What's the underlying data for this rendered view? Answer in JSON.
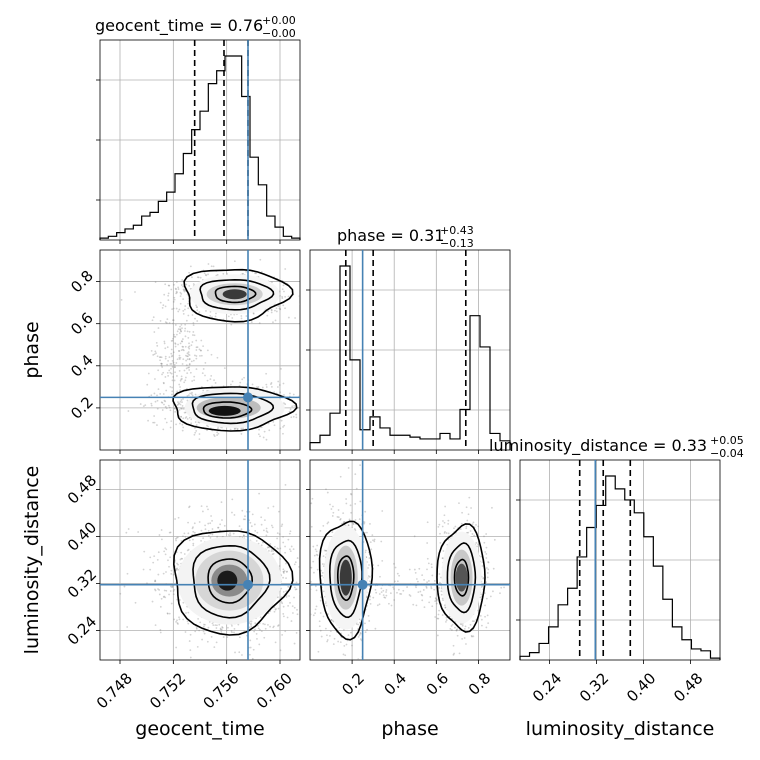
{
  "colors": {
    "truth": "#4682b4",
    "hist": "#000000",
    "grid": "#b0b0b0",
    "scatter": "#808080"
  },
  "chart_data": {
    "type": "corner",
    "parameters": [
      {
        "name": "geocent_time",
        "axis_label": "geocent_time",
        "range": [
          0.7465,
          0.7615
        ],
        "ticks": [
          0.748,
          0.752,
          0.756,
          0.76
        ],
        "tick_labels": [
          "0.748",
          "0.752",
          "0.756",
          "0.760"
        ],
        "title_main": "geocent_time = 0.76",
        "title_plus": "+0.00",
        "title_minus": "−0.00",
        "quantiles": [
          0.7536,
          0.7558,
          0.7576
        ],
        "truth": 0.7576,
        "hist": [
          0.01,
          0.02,
          0.04,
          0.06,
          0.08,
          0.13,
          0.15,
          0.21,
          0.26,
          0.36,
          0.47,
          0.6,
          0.7,
          0.85,
          0.92,
          1.0,
          1.0,
          0.78,
          0.45,
          0.3,
          0.13,
          0.07,
          0.02,
          0.01
        ]
      },
      {
        "name": "phase",
        "axis_label": "phase",
        "range": [
          0.0,
          0.95
        ],
        "ticks": [
          0.2,
          0.4,
          0.6,
          0.8
        ],
        "tick_labels": [
          "0.2",
          "0.4",
          "0.6",
          "0.8"
        ],
        "title_main": "phase = 0.31",
        "title_plus": "+0.43",
        "title_minus": "−0.13",
        "quantiles": [
          0.17,
          0.3,
          0.74
        ],
        "truth": 0.25,
        "hist": [
          0.04,
          0.08,
          0.2,
          1.0,
          0.49,
          0.11,
          0.18,
          0.12,
          0.08,
          0.08,
          0.07,
          0.06,
          0.06,
          0.09,
          0.06,
          0.22,
          0.73,
          0.56,
          0.09,
          0.05
        ]
      },
      {
        "name": "luminosity_distance",
        "axis_label": "luminosity_distance",
        "range": [
          0.19,
          0.53
        ],
        "ticks": [
          0.24,
          0.32,
          0.4,
          0.48
        ],
        "tick_labels": [
          "0.24",
          "0.32",
          "0.40",
          "0.48"
        ],
        "title_main": "luminosity_distance = 0.33",
        "title_plus": "+0.05",
        "title_minus": "−0.04",
        "quantiles": [
          0.2915,
          0.3315,
          0.3775
        ],
        "truth": 0.318,
        "hist": [
          0.02,
          0.04,
          0.09,
          0.18,
          0.3,
          0.39,
          0.56,
          0.72,
          0.84,
          1.0,
          0.93,
          0.87,
          0.8,
          0.67,
          0.51,
          0.33,
          0.18,
          0.11,
          0.06,
          0.05,
          0.01
        ]
      }
    ],
    "pairs": [
      {
        "x": "geocent_time",
        "y": "phase",
        "truth": [
          0.7576,
          0.25
        ]
      },
      {
        "x": "geocent_time",
        "y": "luminosity_distance",
        "truth": [
          0.7576,
          0.318
        ]
      },
      {
        "x": "phase",
        "y": "luminosity_distance",
        "truth": [
          0.25,
          0.318
        ]
      }
    ]
  }
}
